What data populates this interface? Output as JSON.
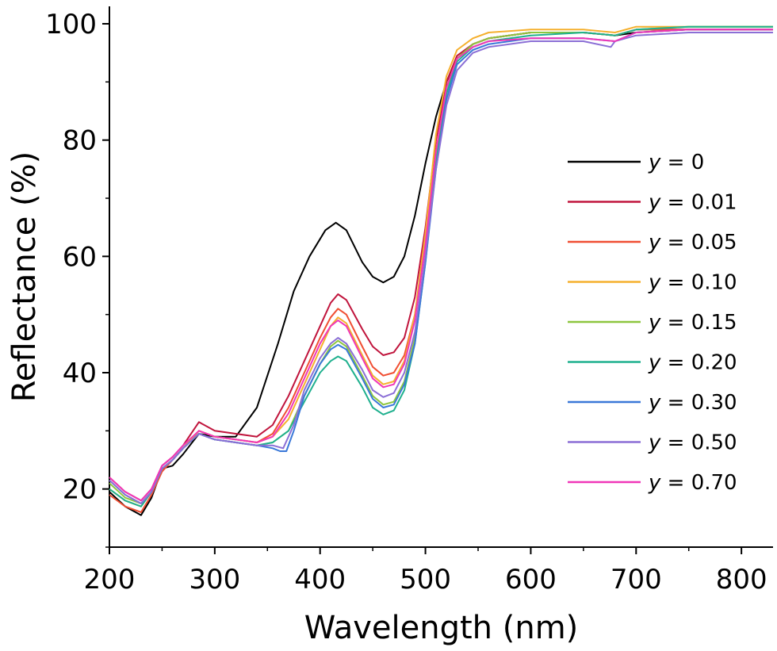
{
  "chart_data": {
    "type": "line",
    "xlabel": "Wavelength (nm)",
    "ylabel": "Reflectance (%)",
    "xlim": [
      200,
      830
    ],
    "ylim": [
      10,
      103
    ],
    "xticks": [
      200,
      300,
      400,
      500,
      600,
      700,
      800
    ],
    "yticks": [
      20,
      40,
      60,
      80,
      100
    ],
    "grid": false,
    "legend_position": "right",
    "series": [
      {
        "name": "y = 0",
        "var": "y",
        "value_text": " = 0",
        "color": "#000000",
        "x": [
          200,
          215,
          230,
          240,
          250,
          260,
          270,
          285,
          300,
          320,
          340,
          360,
          375,
          390,
          405,
          415,
          425,
          440,
          450,
          460,
          470,
          480,
          490,
          500,
          510,
          520,
          530,
          545,
          560,
          600,
          650,
          680,
          700,
          750,
          800,
          830
        ],
        "y": [
          19.5,
          17,
          15.5,
          18.5,
          23.5,
          24,
          26,
          29.5,
          29,
          29,
          34,
          45,
          54,
          60,
          64.5,
          65.8,
          64.5,
          59,
          56.5,
          55.5,
          56.5,
          60,
          67,
          76,
          84,
          90,
          94,
          96.5,
          97.5,
          98.5,
          98.5,
          98,
          98.5,
          99,
          99,
          99
        ]
      },
      {
        "name": "y = 0.01",
        "var": "y",
        "value_text": " = 0.01",
        "color": "#C0143C",
        "x": [
          200,
          215,
          230,
          240,
          250,
          260,
          270,
          285,
          300,
          320,
          340,
          355,
          370,
          385,
          400,
          410,
          417,
          425,
          440,
          450,
          460,
          470,
          480,
          490,
          500,
          510,
          520,
          530,
          545,
          560,
          600,
          650,
          680,
          700,
          750,
          800,
          830
        ],
        "y": [
          22,
          19.5,
          18,
          20,
          24,
          25.5,
          27.5,
          31.5,
          30,
          29.5,
          29,
          31,
          36,
          42,
          48,
          52,
          53.5,
          52.5,
          47.5,
          44.5,
          43,
          43.5,
          46,
          53,
          65,
          80,
          90,
          94.5,
          96.5,
          97.5,
          98.5,
          98.5,
          98,
          99,
          99,
          99,
          99
        ]
      },
      {
        "name": "y = 0.05",
        "var": "y",
        "value_text": " = 0.05",
        "color": "#F04E32",
        "x": [
          200,
          215,
          230,
          240,
          250,
          260,
          270,
          285,
          300,
          320,
          340,
          355,
          370,
          385,
          400,
          410,
          417,
          425,
          440,
          450,
          460,
          470,
          480,
          490,
          500,
          510,
          520,
          530,
          545,
          560,
          600,
          650,
          680,
          700,
          750,
          800,
          830
        ],
        "y": [
          19,
          17,
          16,
          19,
          23,
          25,
          27,
          30,
          29,
          28.5,
          28,
          29.5,
          34,
          40,
          46,
          49.5,
          51,
          50,
          44.5,
          41,
          39.5,
          40,
          43,
          50,
          62,
          78,
          89,
          94,
          96.5,
          97.5,
          98.5,
          98.5,
          98,
          99,
          99,
          99,
          99
        ]
      },
      {
        "name": "y = 0.10",
        "var": "y",
        "value_text": " = 0.10",
        "color": "#F5B02E",
        "x": [
          200,
          215,
          230,
          240,
          250,
          260,
          270,
          285,
          300,
          320,
          340,
          355,
          370,
          385,
          400,
          410,
          417,
          425,
          440,
          450,
          460,
          470,
          480,
          490,
          500,
          510,
          520,
          530,
          545,
          560,
          600,
          650,
          680,
          700,
          750,
          800,
          830
        ],
        "y": [
          20,
          18,
          17,
          19.5,
          23.5,
          25,
          27,
          30,
          29,
          28.5,
          28,
          29,
          32,
          38,
          44,
          48,
          49.5,
          48.5,
          43,
          39.5,
          38,
          38.5,
          42,
          50,
          64,
          81,
          91,
          95.5,
          97.5,
          98.5,
          99,
          99,
          98.5,
          99.5,
          99.5,
          99.5,
          99.5
        ]
      },
      {
        "name": "y = 0.15",
        "var": "y",
        "value_text": " = 0.15",
        "color": "#8DC63F",
        "x": [
          200,
          215,
          230,
          240,
          250,
          260,
          270,
          285,
          300,
          320,
          340,
          355,
          370,
          385,
          400,
          410,
          417,
          425,
          440,
          450,
          460,
          470,
          480,
          490,
          500,
          510,
          520,
          530,
          545,
          560,
          600,
          650,
          680,
          700,
          750,
          800,
          830
        ],
        "y": [
          21,
          18.5,
          17.5,
          19.5,
          23.5,
          25,
          27,
          29.5,
          28.5,
          28,
          27.5,
          28,
          30,
          36,
          41.5,
          44.5,
          45.5,
          44.5,
          39.5,
          36,
          34.5,
          35,
          38.5,
          46,
          60,
          77,
          89,
          94,
          96.5,
          97.5,
          98.5,
          98.5,
          98,
          99,
          99.5,
          99.5,
          99.5
        ]
      },
      {
        "name": "y = 0.20",
        "var": "y",
        "value_text": " = 0.20",
        "color": "#1FB08E",
        "x": [
          200,
          215,
          230,
          240,
          250,
          260,
          270,
          285,
          300,
          320,
          340,
          355,
          370,
          385,
          400,
          410,
          417,
          425,
          440,
          450,
          460,
          470,
          480,
          490,
          500,
          510,
          520,
          530,
          545,
          560,
          600,
          650,
          680,
          700,
          750,
          800,
          830
        ],
        "y": [
          20,
          18,
          17,
          19.5,
          23.5,
          25,
          27,
          29.5,
          28.5,
          28,
          27.5,
          28,
          30,
          35,
          40,
          42,
          42.8,
          42,
          37.5,
          34,
          32.8,
          33.5,
          37,
          45,
          59,
          76,
          88,
          93.5,
          96,
          97,
          98,
          98.5,
          98,
          99,
          99.5,
          99.5,
          99.5
        ]
      },
      {
        "name": "y = 0.30",
        "var": "y",
        "value_text": " = 0.30",
        "color": "#3A78D8",
        "x": [
          200,
          215,
          230,
          240,
          250,
          260,
          270,
          285,
          300,
          320,
          340,
          355,
          362,
          368,
          375,
          385,
          400,
          410,
          417,
          425,
          440,
          450,
          460,
          470,
          480,
          490,
          500,
          510,
          520,
          530,
          545,
          560,
          600,
          650,
          680,
          700,
          750,
          800,
          830
        ],
        "y": [
          21.5,
          19,
          17.5,
          19.5,
          23.5,
          25,
          27,
          29.5,
          28.5,
          28,
          27.5,
          27,
          26.5,
          26.5,
          30,
          36,
          41.5,
          44,
          44.8,
          44,
          39,
          35.5,
          34,
          34.5,
          38,
          45,
          59,
          75,
          87,
          93,
          95.5,
          96.5,
          97.5,
          97.5,
          97,
          98.5,
          99,
          99,
          99
        ]
      },
      {
        "name": "y = 0.50",
        "var": "y",
        "value_text": " = 0.50",
        "color": "#8B6FD6",
        "x": [
          200,
          215,
          230,
          240,
          250,
          260,
          270,
          285,
          300,
          320,
          340,
          355,
          365,
          375,
          385,
          400,
          410,
          417,
          425,
          440,
          450,
          460,
          470,
          480,
          490,
          500,
          510,
          520,
          530,
          545,
          560,
          600,
          650,
          676,
          680,
          700,
          750,
          800,
          830
        ],
        "y": [
          21.5,
          19,
          17.5,
          19.5,
          23.5,
          25,
          27,
          29.5,
          28.5,
          28,
          27.5,
          27.5,
          27,
          31,
          37,
          42.5,
          45,
          46,
          45,
          40.5,
          37,
          35.8,
          36.5,
          40,
          47,
          60,
          75,
          86,
          92,
          95,
          96,
          97,
          97,
          96,
          97,
          98,
          98.5,
          98.5,
          98.5
        ]
      },
      {
        "name": "y = 0.70",
        "var": "y",
        "value_text": " = 0.70",
        "color": "#F037B8",
        "x": [
          200,
          215,
          230,
          240,
          250,
          260,
          270,
          285,
          300,
          320,
          340,
          355,
          370,
          385,
          400,
          410,
          417,
          425,
          440,
          450,
          460,
          470,
          480,
          490,
          500,
          510,
          520,
          530,
          545,
          560,
          600,
          650,
          680,
          700,
          750,
          800,
          830
        ],
        "y": [
          22,
          19.5,
          18,
          20,
          24,
          25.5,
          27.5,
          30,
          29,
          28.5,
          28,
          29,
          33,
          39,
          45,
          48,
          49,
          48,
          42.5,
          39,
          37.5,
          38,
          41.5,
          49,
          62,
          78,
          89,
          94,
          96,
          97,
          97.5,
          97.5,
          97,
          98.5,
          99,
          99,
          99
        ]
      }
    ]
  }
}
